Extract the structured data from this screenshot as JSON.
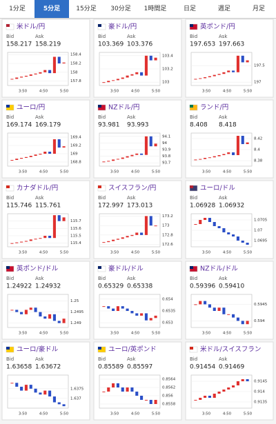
{
  "tabs": [
    "1分足",
    "5分足",
    "15分足",
    "30分足",
    "1時間足",
    "日足",
    "週足",
    "月足"
  ],
  "active_tab": 1,
  "labels": {
    "bid": "Bid",
    "ask": "Ask"
  },
  "x_labels": [
    "3:50",
    "4:50",
    "5:50"
  ],
  "cards": [
    {
      "title": "米ドル/円",
      "bid": "158.217",
      "ask": "158.219",
      "chart": {
        "type": "candlestick",
        "ylim": [
          157.7,
          158.45
        ],
        "yticks": [
          157.8,
          158,
          158.2,
          158.4
        ],
        "values": [
          157.85,
          157.88,
          157.9,
          157.92,
          157.95,
          157.97,
          158.0,
          158.05,
          157.98,
          158.35,
          158.2,
          158.22
        ]
      }
    },
    {
      "title": "豪ドル/円",
      "bid": "103.369",
      "ask": "103.376",
      "chart": {
        "type": "candlestick",
        "ylim": [
          102.95,
          103.45
        ],
        "yticks": [
          103,
          103.2,
          103.4
        ],
        "values": [
          103.0,
          103.02,
          103.03,
          103.05,
          103.07,
          103.1,
          103.12,
          103.15,
          103.1,
          103.4,
          103.33,
          103.37
        ]
      }
    },
    {
      "title": "英ポンド/円",
      "bid": "197.653",
      "ask": "197.663",
      "chart": {
        "type": "candlestick",
        "ylim": [
          196.9,
          197.9
        ],
        "yticks": [
          197,
          197.5
        ],
        "values": [
          197.1,
          197.12,
          197.15,
          197.18,
          197.22,
          197.25,
          197.3,
          197.35,
          197.3,
          197.8,
          197.6,
          197.66
        ]
      }
    },
    {
      "title": "ユーロ/円",
      "bid": "169.174",
      "ask": "169.179",
      "chart": {
        "type": "candlestick",
        "ylim": [
          168.7,
          169.5
        ],
        "yticks": [
          168.8,
          169,
          169.2,
          169.4
        ],
        "values": [
          168.85,
          168.88,
          168.9,
          168.92,
          168.95,
          168.98,
          169.0,
          169.05,
          169.0,
          169.35,
          169.15,
          169.18
        ]
      }
    },
    {
      "title": "NZドル/円",
      "bid": "93.981",
      "ask": "93.993",
      "chart": {
        "type": "candlestick",
        "ylim": [
          93.65,
          94.15
        ],
        "yticks": [
          93.7,
          93.8,
          93.9,
          94,
          94.1
        ],
        "values": [
          93.72,
          93.73,
          93.75,
          93.76,
          93.78,
          93.8,
          93.82,
          93.84,
          93.82,
          94.1,
          93.95,
          93.99
        ]
      }
    },
    {
      "title": "ランド/円",
      "bid": "8.408",
      "ask": "8.418",
      "chart": {
        "type": "candlestick",
        "ylim": [
          8.37,
          8.43
        ],
        "yticks": [
          8.38,
          8.4,
          8.42
        ],
        "values": [
          8.382,
          8.383,
          8.385,
          8.386,
          8.388,
          8.39,
          8.392,
          8.395,
          8.39,
          8.425,
          8.41,
          8.413
        ]
      }
    },
    {
      "title": "カナダドル/円",
      "bid": "115.746",
      "ask": "115.761",
      "chart": {
        "type": "candlestick",
        "ylim": [
          115.35,
          115.8
        ],
        "yticks": [
          115.4,
          115.5,
          115.6,
          115.7
        ],
        "values": [
          115.4,
          115.41,
          115.42,
          115.43,
          115.45,
          115.46,
          115.47,
          115.5,
          115.47,
          115.78,
          115.7,
          115.75
        ]
      }
    },
    {
      "title": "スイスフラン/円",
      "bid": "172.997",
      "ask": "173.013",
      "chart": {
        "type": "candlestick",
        "ylim": [
          172.55,
          173.25
        ],
        "yticks": [
          172.6,
          172.8,
          173,
          173.2
        ],
        "values": [
          172.65,
          172.67,
          172.7,
          172.72,
          172.75,
          172.78,
          172.8,
          172.85,
          172.8,
          173.2,
          173.0,
          173.0
        ]
      }
    },
    {
      "title": "ユーロ/ドル",
      "bid": "1.06928",
      "ask": "1.06932",
      "chart": {
        "type": "candlestick",
        "ylim": [
          1.0692,
          1.0708
        ],
        "yticks": [
          1.0695,
          1.07,
          1.0705
        ],
        "values": [
          1.0703,
          1.0705,
          1.0706,
          1.0704,
          1.0702,
          1.0701,
          1.0699,
          1.0698,
          1.0697,
          1.0695,
          1.0694,
          1.0693
        ]
      }
    },
    {
      "title": "英ポンド/ドル",
      "bid": "1.24922",
      "ask": "1.24932",
      "chart": {
        "type": "candlestick",
        "ylim": [
          1.2488,
          1.2503
        ],
        "yticks": [
          1.249,
          1.2495,
          1.25
        ],
        "values": [
          1.2496,
          1.2495,
          1.2494,
          1.2496,
          1.2497,
          1.2495,
          1.2493,
          1.2492,
          1.2494,
          1.2491,
          1.249,
          1.2492
        ]
      }
    },
    {
      "title": "豪ドル/ドル",
      "bid": "0.65329",
      "ask": "0.65338",
      "chart": {
        "type": "candlestick",
        "ylim": [
          0.6528,
          0.6542
        ],
        "yticks": [
          0.653,
          0.6535,
          0.654
        ],
        "values": [
          0.6537,
          0.6536,
          0.6535,
          0.6537,
          0.6536,
          0.6535,
          0.6534,
          0.6533,
          0.6534,
          0.6531,
          0.6532,
          0.6533
        ]
      }
    },
    {
      "title": "NZドル/ドル",
      "bid": "0.59396",
      "ask": "0.59410",
      "chart": {
        "type": "candlestick",
        "ylim": [
          0.5938,
          0.5948
        ],
        "yticks": [
          0.594,
          0.5945
        ],
        "values": [
          0.5945,
          0.5946,
          0.5945,
          0.5944,
          0.5943,
          0.5944,
          0.5942,
          0.5942,
          0.5941,
          0.594,
          0.5939,
          0.594
        ]
      }
    },
    {
      "title": "ユーロ/豪ドル",
      "bid": "1.63658",
      "ask": "1.63672",
      "chart": {
        "type": "candlestick",
        "ylim": [
          1.6365,
          1.6382
        ],
        "yticks": [
          1.637,
          1.6375
        ],
        "values": [
          1.6378,
          1.6376,
          1.6374,
          1.6377,
          1.6375,
          1.6373,
          1.6372,
          1.6374,
          1.6371,
          1.6368,
          1.6367,
          1.6366
        ]
      }
    },
    {
      "title": "ユーロ/英ポンド",
      "bid": "0.85589",
      "ask": "0.85597",
      "chart": {
        "type": "candlestick",
        "ylim": [
          0.8557,
          0.8565
        ],
        "yticks": [
          0.8558,
          0.856,
          0.8562,
          0.8564
        ],
        "values": [
          0.8561,
          0.8562,
          0.8563,
          0.8562,
          0.8561,
          0.8562,
          0.8561,
          0.856,
          0.8559,
          0.8559,
          0.8558,
          0.8559
        ]
      }
    },
    {
      "title": "米ドル/スイスフラン",
      "bid": "0.91454",
      "ask": "0.91469",
      "chart": {
        "type": "candlestick",
        "ylim": [
          0.9132,
          0.9148
        ],
        "yticks": [
          0.9135,
          0.914,
          0.9145
        ],
        "values": [
          0.9136,
          0.9137,
          0.9138,
          0.9137,
          0.9139,
          0.914,
          0.9141,
          0.9142,
          0.9143,
          0.9145,
          0.9146,
          0.9145
        ]
      }
    }
  ]
}
